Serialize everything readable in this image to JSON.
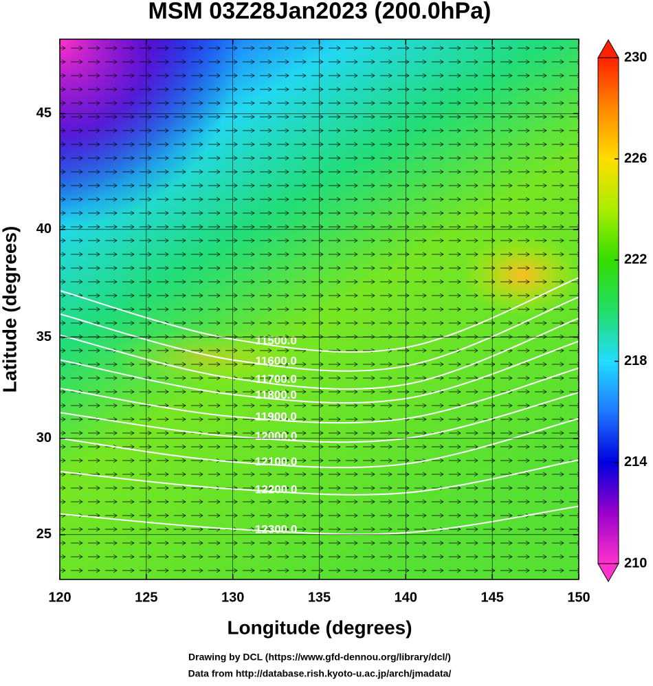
{
  "chart_data": {
    "type": "map",
    "title": "MSM 03Z28Jan2023 (200.0hPa)",
    "xlabel": "Longitude (degrees)",
    "ylabel": "Latitude  (degrees)",
    "projection": "mercator",
    "xlim": [
      120,
      150
    ],
    "ylim": [
      22.6,
      48
    ],
    "xticks": [
      120,
      125,
      130,
      135,
      140,
      145,
      150
    ],
    "yticks": [
      25,
      30,
      35,
      40,
      45
    ],
    "contour_color": "#ffffff",
    "contour_lons": [
      120,
      130,
      140,
      150
    ],
    "contours": [
      {
        "value": 11500,
        "label": "11500.0",
        "lat": [
          37.2,
          34.9,
          34.5,
          37.8
        ]
      },
      {
        "value": 11600,
        "label": "11600.0",
        "lat": [
          36.1,
          33.9,
          33.6,
          36.9
        ]
      },
      {
        "value": 11700,
        "label": "11700.0",
        "lat": [
          35.1,
          33.0,
          32.7,
          35.9
        ]
      },
      {
        "value": 11800,
        "label": "11800.0",
        "lat": [
          33.9,
          32.2,
          32.0,
          34.8
        ]
      },
      {
        "value": 11900,
        "label": "11900.0",
        "lat": [
          32.5,
          31.1,
          31.0,
          33.5
        ]
      },
      {
        "value": 12000,
        "label": "12000.0",
        "lat": [
          31.3,
          30.1,
          30.0,
          32.3
        ]
      },
      {
        "value": 12100,
        "label": "12100.0",
        "lat": [
          30.0,
          28.8,
          28.7,
          31.0
        ]
      },
      {
        "value": 12200,
        "label": "12200.0",
        "lat": [
          28.3,
          27.4,
          27.2,
          28.9
        ]
      },
      {
        "value": 12300,
        "label": "12300.0",
        "lat": [
          26.1,
          25.3,
          25.1,
          26.5
        ]
      }
    ],
    "colorbar": {
      "lim": [
        210,
        230
      ],
      "ticks": [
        210,
        214,
        218,
        222,
        226,
        230
      ],
      "colors": [
        "#ff33cc",
        "#9900cc",
        "#0000dd",
        "#1e78ff",
        "#22ddff",
        "#22dd66",
        "#33dd00",
        "#aaee00",
        "#ffdd00",
        "#ff8800",
        "#ff2200"
      ]
    },
    "credits": [
      "Drawing by DCL (https://www.gfd-dennou.org/library/dcl/)",
      "Data from http://database.rish.kyoto-u.ac.jp/arch/jmadata/"
    ]
  }
}
